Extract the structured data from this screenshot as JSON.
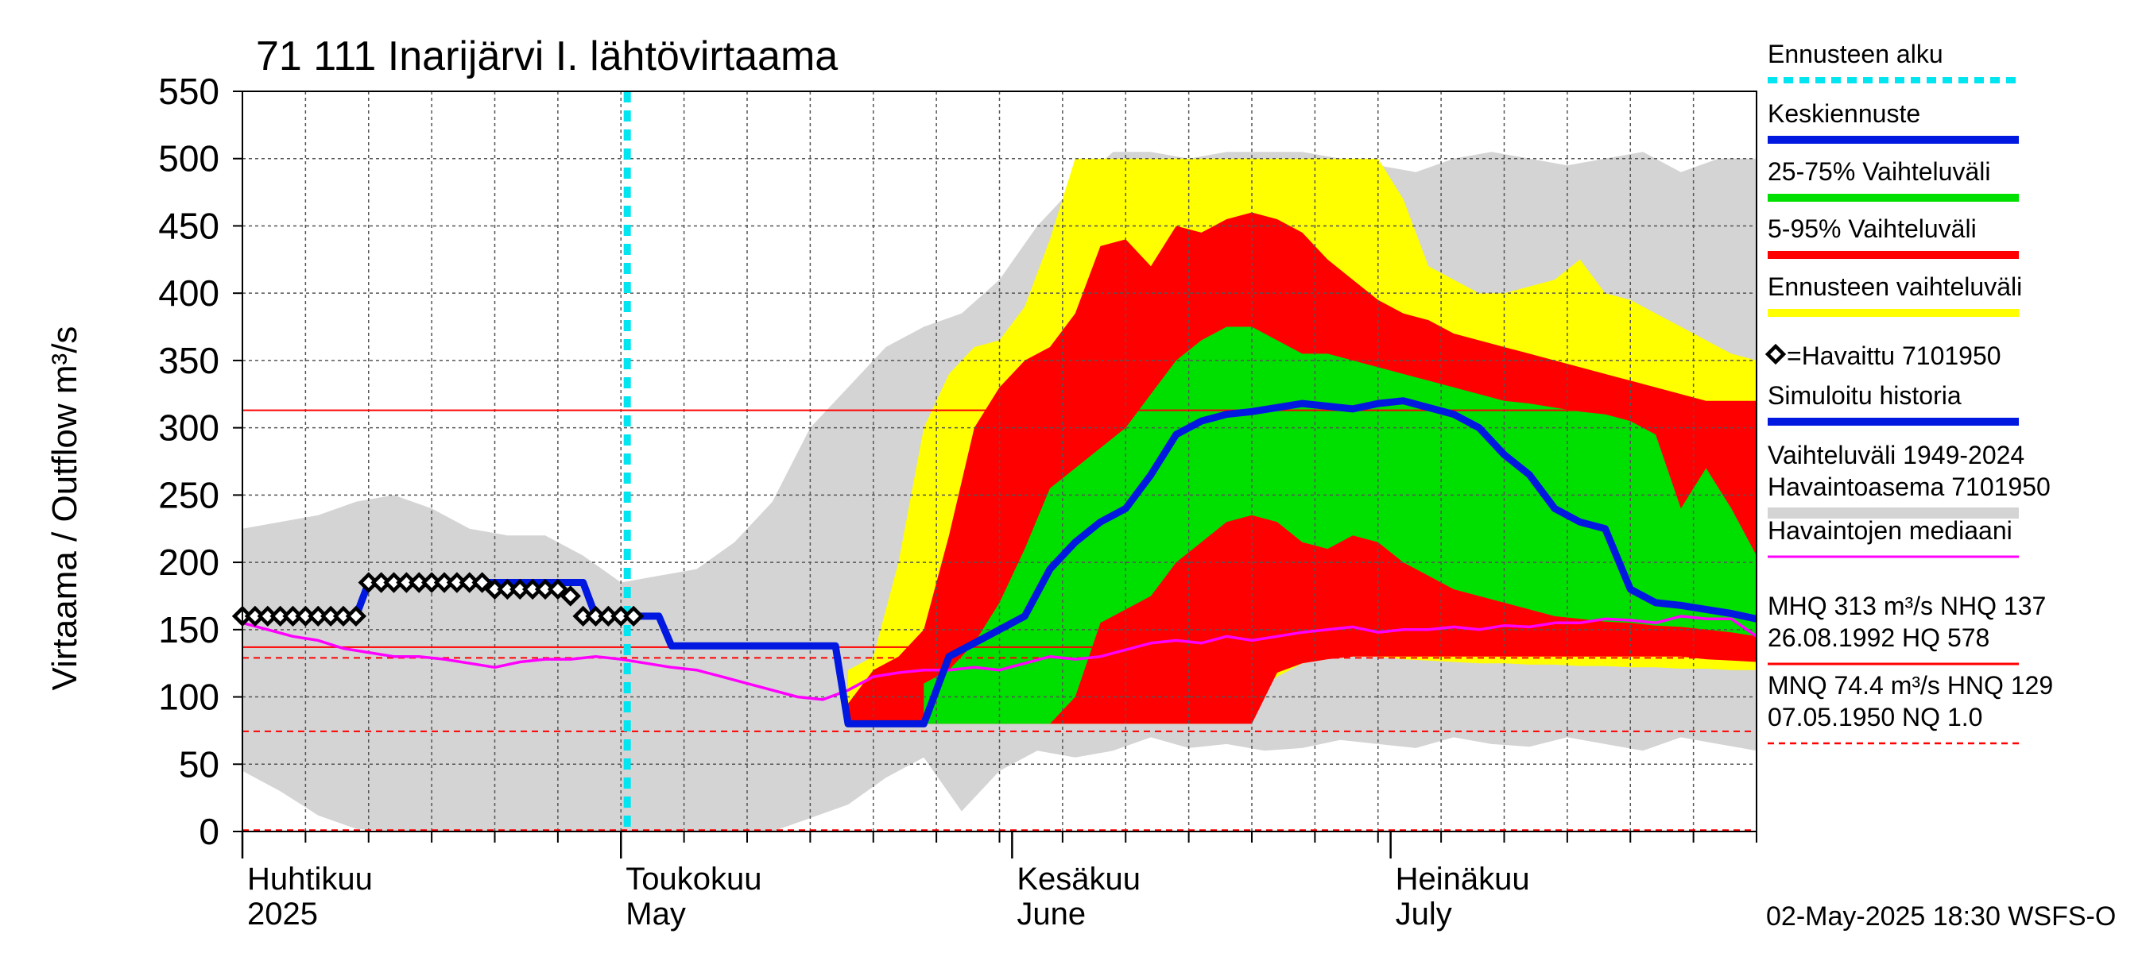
{
  "chart_data": {
    "type": "area",
    "title": "71 111 Inarijärvi I. lähtövirtaama",
    "ylabel": "Virtaama / Outflow    m³/s",
    "ylim": [
      0,
      550
    ],
    "yticks": [
      0,
      50,
      100,
      150,
      200,
      250,
      300,
      350,
      400,
      450,
      500,
      550
    ],
    "x_range_days": [
      0,
      120
    ],
    "month_labels": [
      {
        "fi": "Huhtikuu",
        "en": "2025",
        "day": 0
      },
      {
        "fi": "Toukokuu",
        "en": "May",
        "day": 30
      },
      {
        "fi": "Kesäkuu",
        "en": "June",
        "day": 61
      },
      {
        "fi": "Heinäkuu",
        "en": "July",
        "day": 91
      }
    ],
    "forecast_start_day": 30.5,
    "reference_lines": {
      "MHQ": 313,
      "NHQ": 137,
      "HQ": 578,
      "MNQ": 74.4,
      "HNQ": 129,
      "NQ": 1.0
    },
    "legend": [
      {
        "label": "Ennusteen alku",
        "color": "#00e5f0",
        "style": "dotted"
      },
      {
        "label": "Keskiennuste",
        "color": "#0018e0",
        "style": "solid"
      },
      {
        "label": "25-75% Vaihteluväli",
        "color": "#00e000",
        "style": "solid"
      },
      {
        "label": "5-95% Vaihteluväli",
        "color": "#ff0000",
        "style": "solid"
      },
      {
        "label": "Ennusteen vaihteluväli",
        "color": "#ffff00",
        "style": "solid"
      },
      {
        "label": "=Havaittu 7101950",
        "color": "#000000",
        "style": "marker"
      },
      {
        "label": "Simuloitu historia",
        "color": "#0018e0",
        "style": "solid"
      },
      {
        "label": "Vaihteluväli 1949-2024\n Havaintoasema 7101950",
        "color": "#d4d4d4",
        "style": "solid"
      },
      {
        "label": "Havaintojen mediaani",
        "color": "#ff00ff",
        "style": "solid"
      },
      {
        "label": "MHQ  313 m³/s NHQ  137\n26.08.1992 HQ  578",
        "color": "#ff0000",
        "style": "solid"
      },
      {
        "label": "MNQ 74.4 m³/s HNQ  129\n07.05.1950 NQ  1.0",
        "color": "#ff0000",
        "style": "dashed"
      }
    ],
    "footer": "02-May-2025 18:30 WSFS-O",
    "series": [
      {
        "name": "Vaihteluväli 1949-2024",
        "color": "#d4d4d4",
        "x": [
          0,
          3,
          6,
          9,
          12,
          15,
          18,
          21,
          24,
          27,
          30,
          33,
          36,
          39,
          42,
          45,
          48,
          51,
          54,
          57,
          60,
          63,
          66,
          69,
          72,
          75,
          78,
          81,
          84,
          87,
          90,
          93,
          96,
          99,
          102,
          105,
          108,
          111,
          114,
          117,
          120
        ],
        "lower": [
          45,
          30,
          12,
          2,
          0,
          0,
          0,
          0,
          0,
          0,
          0,
          0,
          0,
          0,
          0,
          10,
          20,
          40,
          55,
          15,
          45,
          60,
          55,
          60,
          70,
          62,
          65,
          60,
          62,
          68,
          65,
          62,
          70,
          65,
          63,
          70,
          65,
          60,
          70,
          65,
          60
        ],
        "upper": [
          225,
          230,
          235,
          245,
          250,
          240,
          225,
          220,
          220,
          205,
          185,
          190,
          195,
          215,
          245,
          300,
          330,
          360,
          375,
          385,
          410,
          450,
          480,
          505,
          505,
          500,
          505,
          505,
          505,
          500,
          495,
          490,
          500,
          505,
          500,
          495,
          500,
          505,
          490,
          500,
          500
        ]
      },
      {
        "name": "Ennusteen vaihteluväli",
        "color": "#ffff00",
        "x": [
          48,
          50,
          52,
          54,
          56,
          58,
          60,
          62,
          64,
          66,
          68,
          70,
          72,
          74,
          76,
          78,
          80,
          82,
          84,
          86,
          88,
          90,
          92,
          94,
          96,
          98,
          100,
          102,
          104,
          106,
          108,
          110,
          112,
          114,
          116,
          118,
          120
        ],
        "lower": [
          80,
          80,
          80,
          80,
          80,
          80,
          80,
          80,
          80,
          80,
          80,
          80,
          80,
          80,
          80,
          80,
          100,
          115,
          125,
          130,
          130,
          130,
          128,
          127,
          126,
          125,
          125,
          124,
          124,
          123,
          123,
          122,
          122,
          121,
          121,
          120,
          120
        ],
        "upper": [
          120,
          130,
          200,
          300,
          340,
          360,
          365,
          390,
          440,
          500,
          500,
          500,
          500,
          500,
          500,
          500,
          500,
          500,
          500,
          500,
          500,
          500,
          470,
          420,
          410,
          400,
          400,
          405,
          410,
          425,
          400,
          395,
          385,
          375,
          365,
          355,
          350
        ]
      },
      {
        "name": "5-95% Vaihteluväli",
        "color": "#ff0000",
        "x": [
          48,
          50,
          52,
          54,
          56,
          58,
          60,
          62,
          64,
          66,
          68,
          70,
          72,
          74,
          76,
          78,
          80,
          82,
          84,
          86,
          88,
          90,
          92,
          94,
          96,
          98,
          100,
          102,
          104,
          106,
          108,
          110,
          112,
          114,
          116,
          118,
          120
        ],
        "lower": [
          80,
          80,
          80,
          80,
          80,
          80,
          80,
          80,
          80,
          80,
          80,
          80,
          80,
          80,
          80,
          80,
          80,
          118,
          125,
          128,
          130,
          130,
          130,
          130,
          130,
          130,
          130,
          130,
          130,
          130,
          130,
          130,
          130,
          130,
          128,
          127,
          126
        ],
        "upper": [
          95,
          120,
          130,
          150,
          220,
          300,
          330,
          350,
          360,
          385,
          435,
          440,
          420,
          450,
          445,
          455,
          460,
          455,
          445,
          425,
          410,
          395,
          385,
          380,
          370,
          365,
          360,
          355,
          350,
          345,
          340,
          335,
          330,
          325,
          320,
          320,
          320
        ]
      },
      {
        "name": "25-75% Vaihteluväli",
        "color": "#00e000",
        "x": [
          54,
          56,
          58,
          60,
          62,
          64,
          66,
          68,
          70,
          72,
          74,
          76,
          78,
          80,
          82,
          84,
          86,
          88,
          90,
          92,
          94,
          96,
          98,
          100,
          102,
          104,
          106,
          108,
          110,
          112,
          114,
          116,
          118,
          120
        ],
        "lower": [
          80,
          80,
          80,
          80,
          80,
          80,
          100,
          155,
          165,
          175,
          200,
          215,
          230,
          235,
          230,
          215,
          210,
          220,
          215,
          200,
          190,
          180,
          175,
          170,
          165,
          160,
          158,
          156,
          155,
          153,
          152,
          150,
          148,
          145
        ],
        "upper": [
          110,
          120,
          140,
          170,
          210,
          255,
          270,
          285,
          300,
          325,
          350,
          365,
          375,
          375,
          365,
          355,
          355,
          350,
          345,
          340,
          335,
          330,
          325,
          320,
          318,
          315,
          312,
          310,
          305,
          295,
          240,
          270,
          240,
          205
        ]
      },
      {
        "name": "Havaintojen mediaani",
        "color": "#ff00ff",
        "x": [
          0,
          2,
          4,
          6,
          8,
          10,
          12,
          14,
          16,
          18,
          20,
          22,
          24,
          26,
          28,
          30,
          32,
          34,
          36,
          38,
          40,
          42,
          44,
          46,
          48,
          50,
          52,
          54,
          56,
          58,
          60,
          62,
          64,
          66,
          68,
          70,
          72,
          74,
          76,
          78,
          80,
          82,
          84,
          86,
          88,
          90,
          92,
          94,
          96,
          98,
          100,
          102,
          104,
          106,
          108,
          110,
          112,
          114,
          116,
          118,
          120
        ],
        "y": [
          155,
          150,
          145,
          142,
          136,
          133,
          130,
          130,
          128,
          125,
          122,
          126,
          128,
          128,
          130,
          128,
          125,
          122,
          120,
          115,
          110,
          105,
          100,
          98,
          105,
          115,
          118,
          120,
          120,
          122,
          120,
          125,
          130,
          128,
          130,
          135,
          140,
          142,
          140,
          145,
          142,
          145,
          148,
          150,
          152,
          148,
          150,
          150,
          152,
          150,
          153,
          152,
          155,
          155,
          158,
          157,
          155,
          160,
          158,
          158,
          145
        ]
      },
      {
        "name": "Keskiennuste",
        "color": "#0018e0",
        "x": [
          30.5,
          33,
          34,
          40,
          46,
          47,
          48,
          50,
          52,
          54,
          56,
          58,
          60,
          62,
          64,
          66,
          68,
          70,
          72,
          74,
          76,
          78,
          80,
          82,
          84,
          86,
          88,
          90,
          92,
          94,
          96,
          98,
          100,
          102,
          104,
          106,
          108,
          110,
          112,
          114,
          116,
          118,
          120
        ],
        "y": [
          160,
          160,
          138,
          138,
          138,
          138,
          80,
          80,
          80,
          80,
          130,
          140,
          150,
          160,
          195,
          215,
          230,
          240,
          265,
          295,
          305,
          310,
          312,
          315,
          318,
          316,
          314,
          318,
          320,
          315,
          310,
          300,
          280,
          265,
          240,
          230,
          225,
          180,
          170,
          168,
          165,
          162,
          158
        ]
      },
      {
        "name": "Simuloitu historia",
        "color": "#0018e0",
        "x": [
          0,
          9,
          10,
          27,
          28,
          30.5
        ],
        "y": [
          160,
          160,
          185,
          185,
          160,
          160
        ]
      },
      {
        "name": "Havaittu 7101950",
        "color": "#000000",
        "x": [
          0,
          1,
          2,
          3,
          4,
          5,
          6,
          7,
          8,
          9,
          10,
          11,
          12,
          13,
          14,
          15,
          16,
          17,
          18,
          19,
          20,
          21,
          22,
          23,
          24,
          25,
          26,
          27,
          28,
          29,
          30,
          31
        ],
        "y": [
          160,
          160,
          160,
          160,
          160,
          160,
          160,
          160,
          160,
          160,
          185,
          185,
          185,
          185,
          185,
          185,
          185,
          185,
          185,
          185,
          180,
          180,
          180,
          180,
          180,
          180,
          175,
          160,
          160,
          160,
          160,
          160
        ]
      }
    ]
  }
}
